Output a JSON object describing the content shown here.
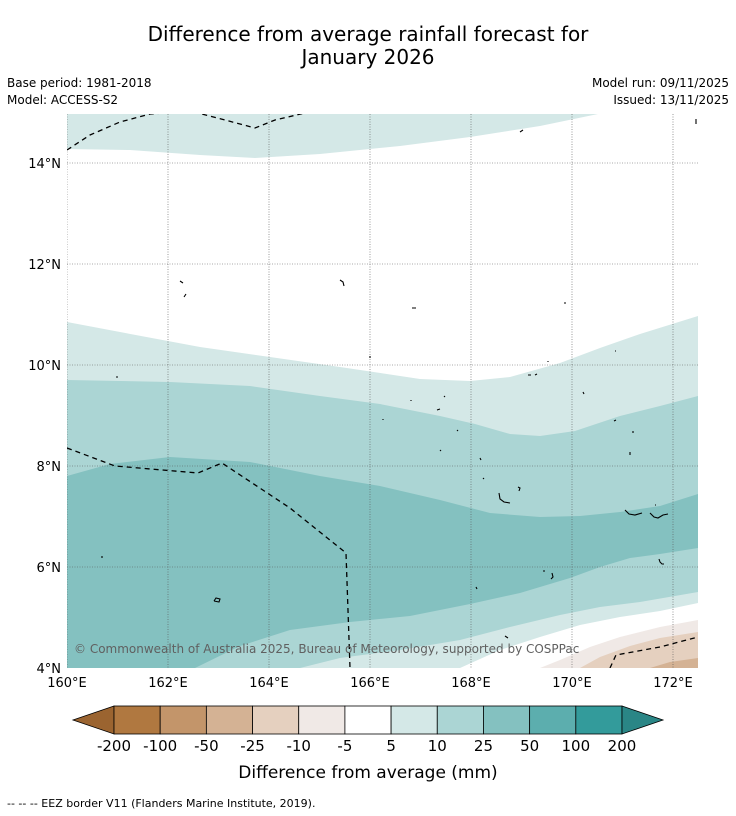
{
  "title": {
    "line1": "Difference from average rainfall forecast for",
    "line2": "January 2026"
  },
  "meta": {
    "base_period": "Base period: 1981-2018",
    "model": "Model: ACCESS-S2",
    "model_run": "Model run: 09/11/2025",
    "issued": "Issued: 13/11/2025"
  },
  "map": {
    "lon_range": [
      160,
      172.5
    ],
    "lat_range": [
      4,
      15
    ],
    "lat_ticks": [
      {
        "value": 14,
        "label": "14°N"
      },
      {
        "value": 12,
        "label": "12°N"
      },
      {
        "value": 10,
        "label": "10°N"
      },
      {
        "value": 8,
        "label": "8°N"
      },
      {
        "value": 6,
        "label": "6°N"
      },
      {
        "value": 4,
        "label": "4°N"
      }
    ],
    "lon_ticks": [
      {
        "value": 160,
        "label": "160°E"
      },
      {
        "value": 162,
        "label": "162°E"
      },
      {
        "value": 164,
        "label": "164°E"
      },
      {
        "value": 166,
        "label": "166°E"
      },
      {
        "value": 168,
        "label": "168°E"
      },
      {
        "value": 170,
        "label": "170°E"
      },
      {
        "value": 172,
        "label": "172°E"
      }
    ],
    "copyright": "© Commonwealth of Australia 2025, Bureau of Meteorology, supported by COSPPac"
  },
  "colorbar": {
    "label": "Difference from average (mm)",
    "tick_labels": [
      "-200",
      "-100",
      "-50",
      "-25",
      "-10",
      "-5",
      "5",
      "10",
      "25",
      "50",
      "100",
      "200"
    ],
    "colors": {
      "under": "#9b6430",
      "bins": [
        "#b07840",
        "#c3956a",
        "#d4b294",
        "#e5d0bf",
        "#f0e9e6",
        "#ffffff",
        "#d4e8e7",
        "#abd5d4",
        "#84c1c0",
        "#5caeae",
        "#339b9b"
      ],
      "over": "#2a8686"
    }
  },
  "footnote": "--  --  -- EEZ border V11 (Flanders Marine Institute, 2019)."
}
